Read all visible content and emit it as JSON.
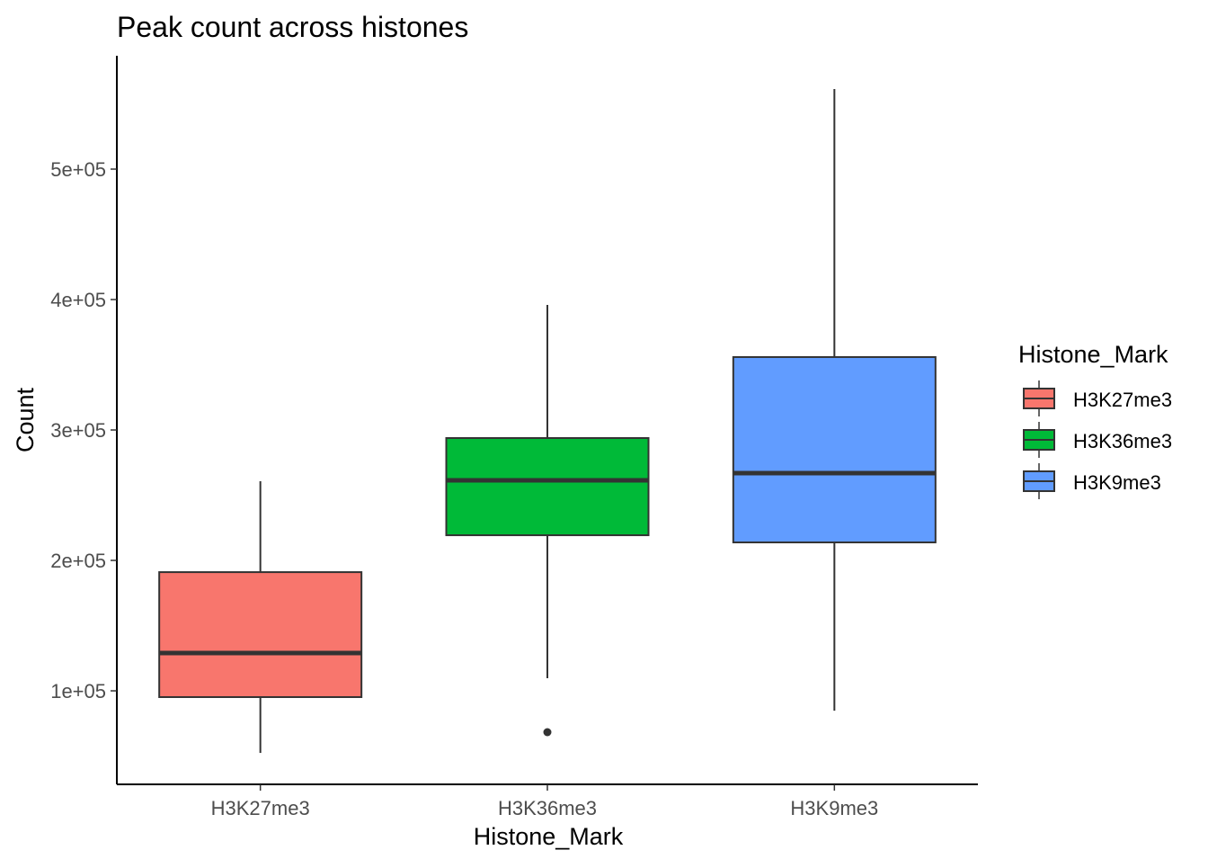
{
  "chart_data": {
    "type": "boxplot",
    "title": "Peak count across histones",
    "xlabel": "Histone_Mark",
    "ylabel": "Count",
    "ylim": [
      28300,
      586900
    ],
    "yticks": [
      100000,
      200000,
      300000,
      400000,
      500000
    ],
    "ytick_labels": [
      "1e+05",
      "2e+05",
      "3e+05",
      "4e+05",
      "5e+05"
    ],
    "grid": false,
    "categories": [
      "H3K27me3",
      "H3K36me3",
      "H3K9me3"
    ],
    "boxes": [
      {
        "category": "H3K27me3",
        "whisker_low": 52400,
        "q1": 95200,
        "median": 129000,
        "q3": 191000,
        "whisker_high": 260700,
        "outliers": [],
        "color": "#F8766D"
      },
      {
        "category": "H3K36me3",
        "whisker_low": 109700,
        "q1": 219300,
        "median": 261400,
        "q3": 293800,
        "whisker_high": 395900,
        "outliers": [
          68300
        ],
        "color": "#00BA38"
      },
      {
        "category": "H3K9me3",
        "whisker_low": 84800,
        "q1": 213800,
        "median": 266900,
        "q3": 355900,
        "whisker_high": 561400,
        "outliers": [],
        "color": "#619CFF"
      }
    ],
    "legend": {
      "title": "Histone_Mark",
      "placement": "right",
      "entries": [
        "H3K27me3",
        "H3K36me3",
        "H3K9me3"
      ]
    }
  }
}
